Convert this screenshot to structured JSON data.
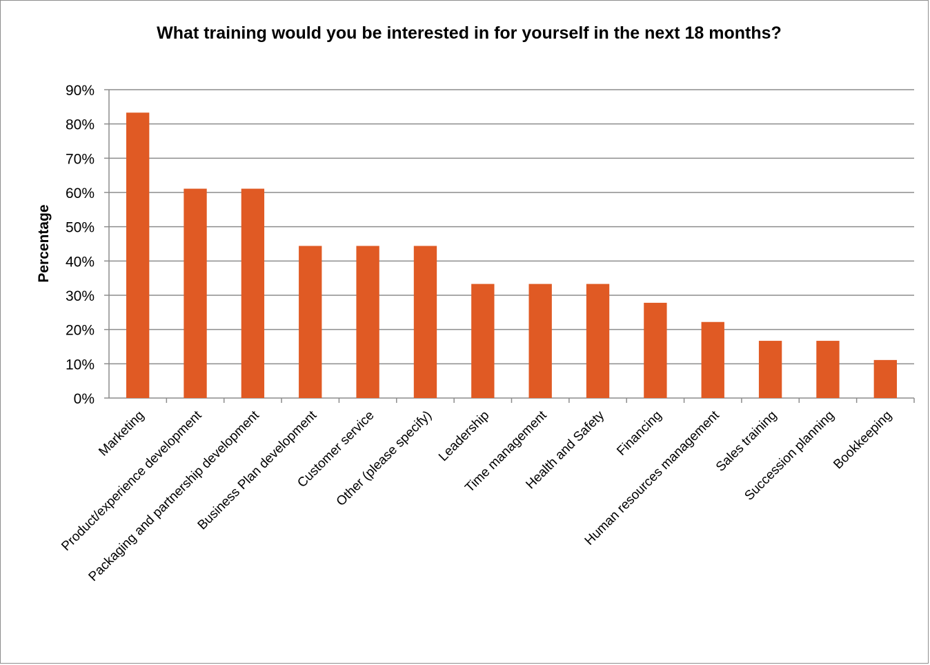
{
  "chart_data": {
    "type": "bar",
    "title": "What training would you be interested in for yourself in the next 18 months?",
    "xlabel": "",
    "ylabel": "Percentage",
    "ylim": [
      0,
      90
    ],
    "ytick_step": 10,
    "y_tick_labels": [
      "0%",
      "10%",
      "20%",
      "30%",
      "40%",
      "50%",
      "60%",
      "70%",
      "80%",
      "90%"
    ],
    "grid": true,
    "legend": "none",
    "bar_color": "#e05a24",
    "categories": [
      "Marketing",
      "Product/experience development",
      "Packaging and partnership development",
      "Business Plan development",
      "Customer service",
      "Other (please specify)",
      "Leadership",
      "Time management",
      "Health and Safety",
      "Financing",
      "Human resources management",
      "Sales training",
      "Succession planning",
      "Bookkeeping"
    ],
    "values": [
      83.3,
      61.1,
      61.1,
      44.4,
      44.4,
      44.4,
      33.3,
      33.3,
      33.3,
      27.8,
      22.2,
      16.7,
      16.7,
      11.1
    ]
  }
}
